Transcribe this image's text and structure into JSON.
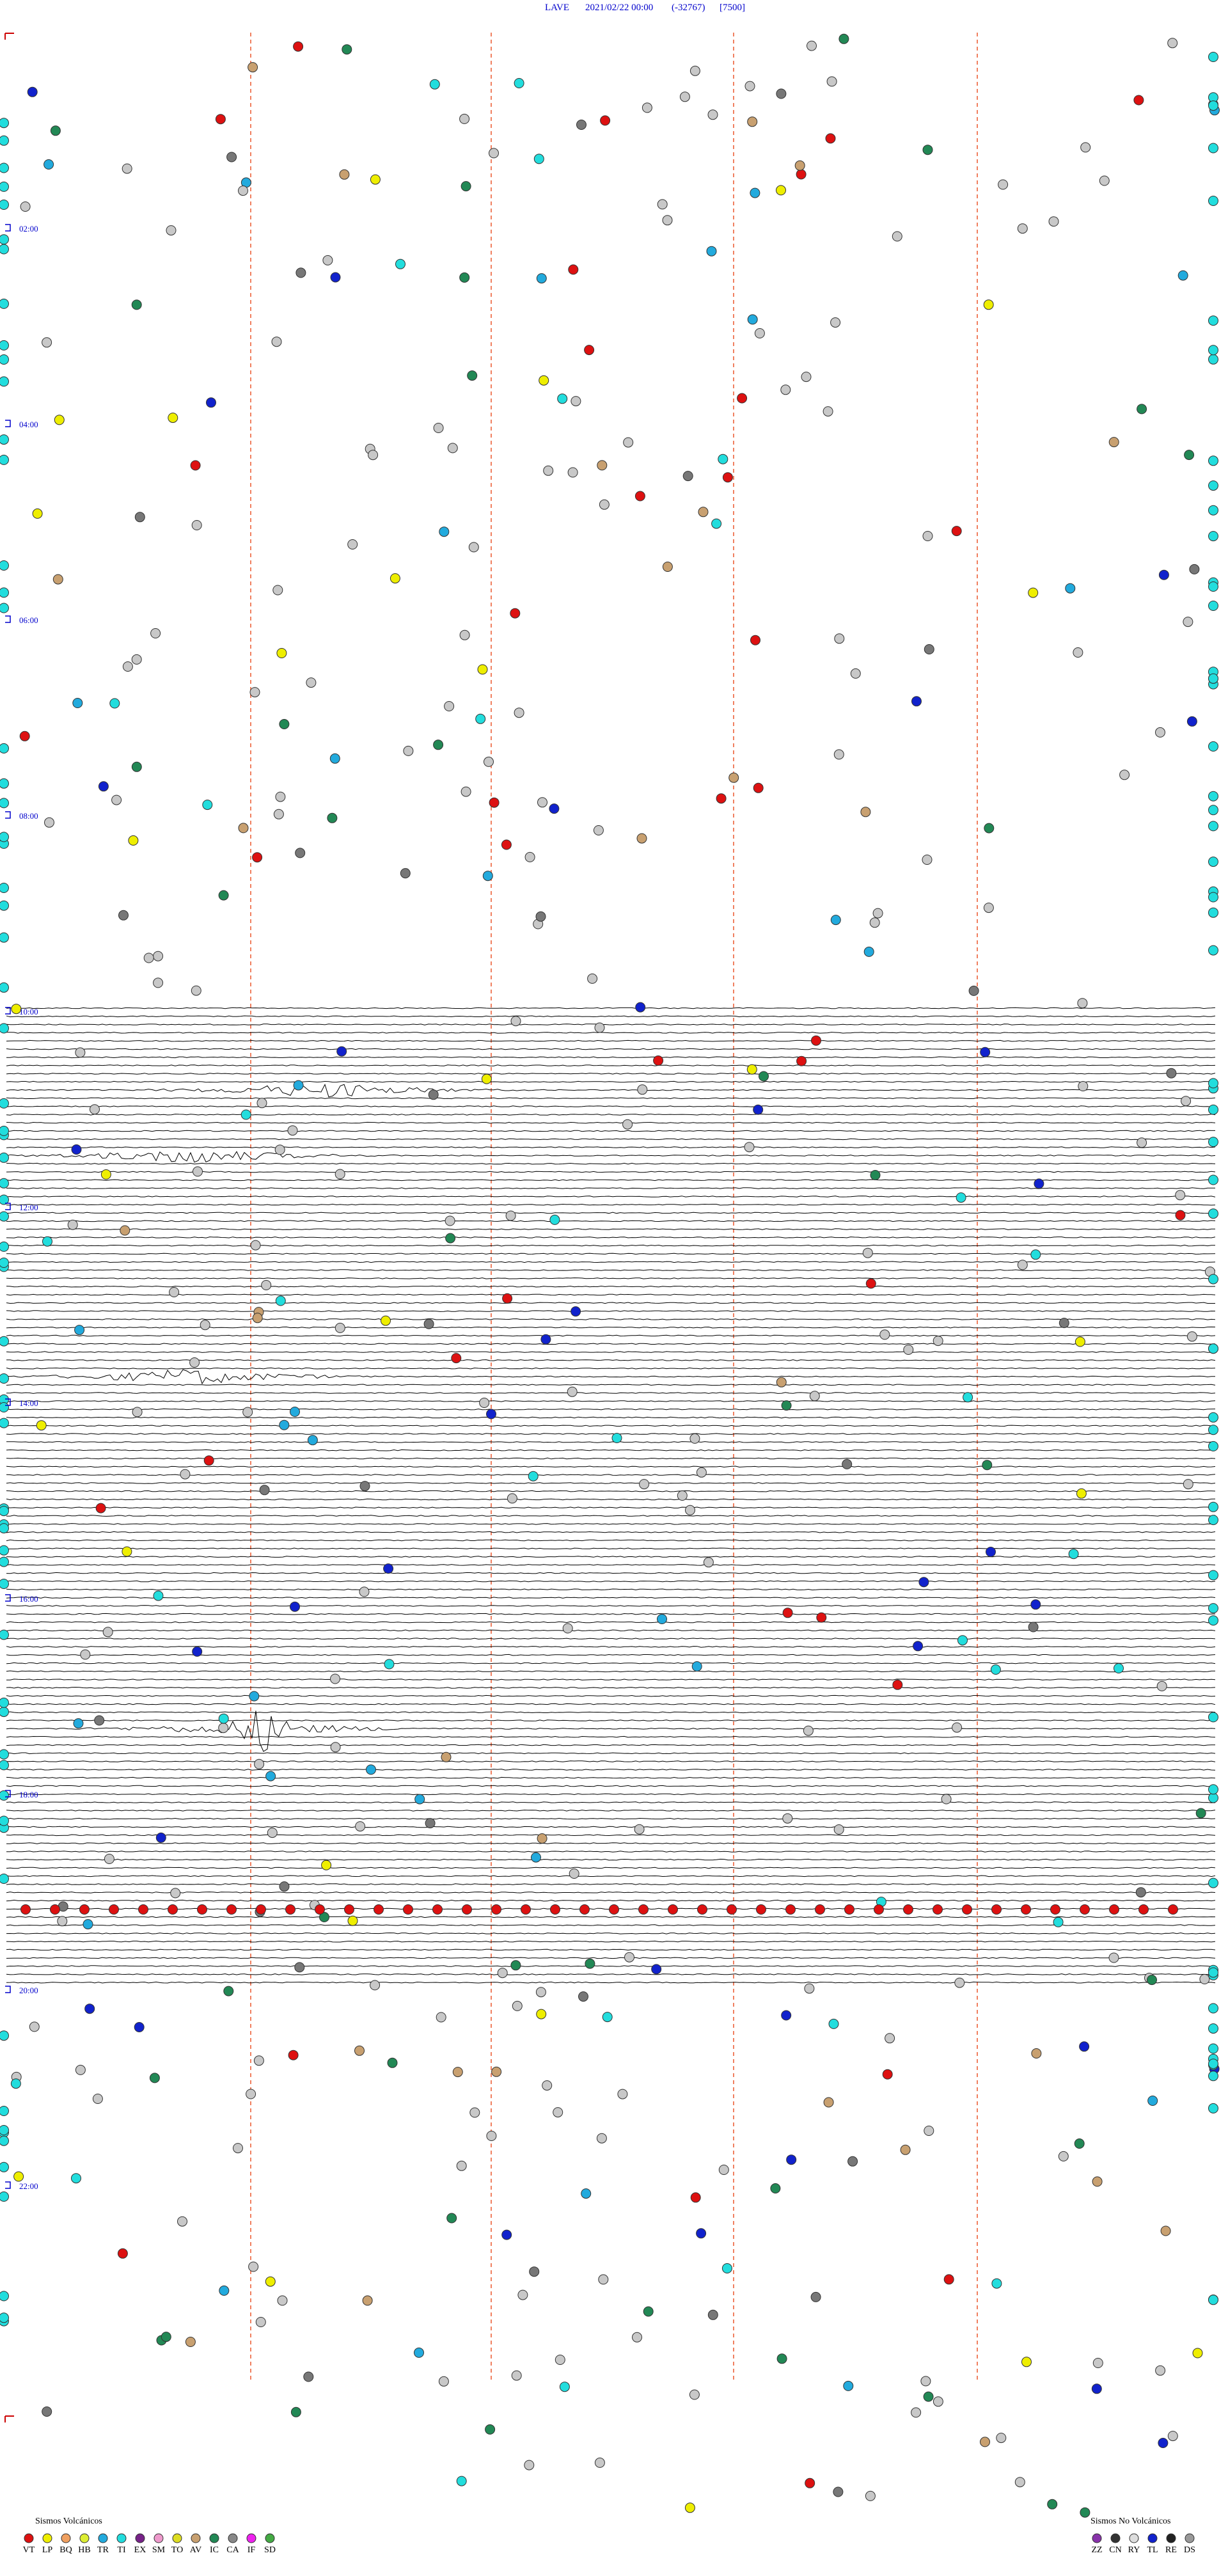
{
  "header": {
    "station": "LAVE",
    "datetime": "2021/02/22 00:00",
    "code": "(-32767)",
    "scale": "[7500]"
  },
  "time_labels": [
    "02:00",
    "04:00",
    "06:00",
    "08:00",
    "10:00",
    "12:00",
    "14:00",
    "16:00",
    "18:00",
    "20:00",
    "22:00"
  ],
  "legend": {
    "volcanic": {
      "title": "Sismos Volcánicos",
      "items": [
        {
          "label": "VT",
          "color": "#dd1111"
        },
        {
          "label": "LP",
          "color": "#eeee00"
        },
        {
          "label": "BQ",
          "color": "#f0a060"
        },
        {
          "label": "HB",
          "color": "#ddee33"
        },
        {
          "label": "TR",
          "color": "#22aadd"
        },
        {
          "label": "TI",
          "color": "#22dddd"
        },
        {
          "label": "EX",
          "color": "#772288"
        },
        {
          "label": "SM",
          "color": "#ee99cc"
        },
        {
          "label": "TO",
          "color": "#dddd22"
        },
        {
          "label": "AV",
          "color": "#c8a070"
        },
        {
          "label": "IC",
          "color": "#228855"
        },
        {
          "label": "CA",
          "color": "#888888"
        },
        {
          "label": "IF",
          "color": "#ee22ee"
        },
        {
          "label": "SD",
          "color": "#44aa44"
        }
      ]
    },
    "non_volcanic": {
      "title": "Sismos No Volcánicos",
      "items": [
        {
          "label": "ZZ",
          "color": "#8833aa"
        },
        {
          "label": "CN",
          "color": "#333333"
        },
        {
          "label": "RY",
          "color": "#dddddd"
        },
        {
          "label": "TL",
          "color": "#1122cc"
        },
        {
          "label": "RE",
          "color": "#222222"
        },
        {
          "label": "DS",
          "color": "#999999"
        }
      ]
    }
  }
}
